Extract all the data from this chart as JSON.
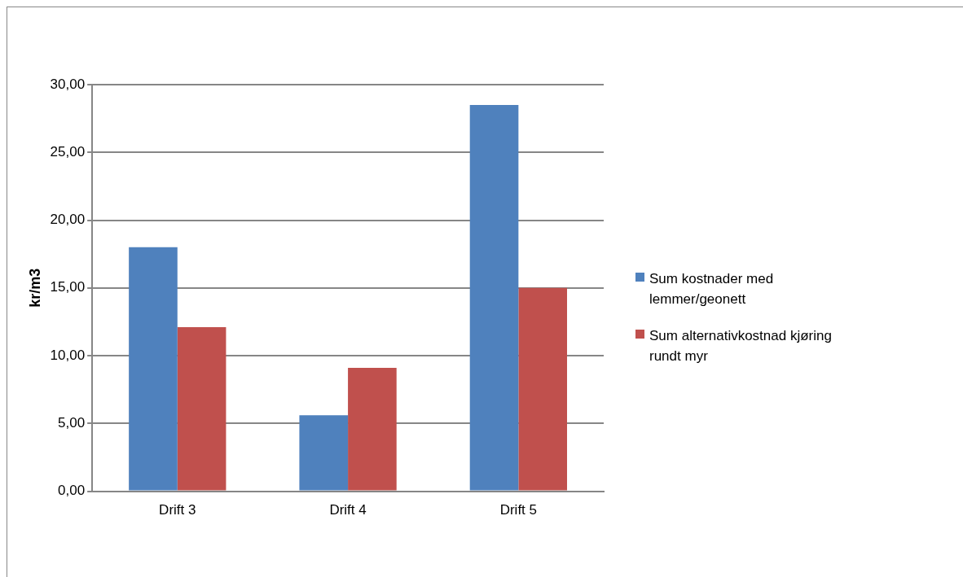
{
  "chart_data": {
    "type": "bar",
    "ylabel": "kr/m3",
    "categories": [
      "Drift 3",
      "Drift 4",
      "Drift 5"
    ],
    "series": [
      {
        "name": "Sum kostnader med lemmer/geonett",
        "color": "#4f81bd",
        "values": [
          18.0,
          5.6,
          28.5
        ]
      },
      {
        "name": "Sum alternativkostnad kjøring rundt myr",
        "color": "#c0504d",
        "values": [
          12.1,
          9.1,
          15.0
        ]
      }
    ],
    "ylim": [
      0,
      30
    ],
    "yticks": [
      {
        "value": 0,
        "label": "0,00"
      },
      {
        "value": 5,
        "label": "5,00"
      },
      {
        "value": 10,
        "label": "10,00"
      },
      {
        "value": 15,
        "label": "15,00"
      },
      {
        "value": 20,
        "label": "20,00"
      },
      {
        "value": 25,
        "label": "25,00"
      },
      {
        "value": 30,
        "label": "30,00"
      }
    ],
    "grid": "y",
    "legend": "right"
  }
}
